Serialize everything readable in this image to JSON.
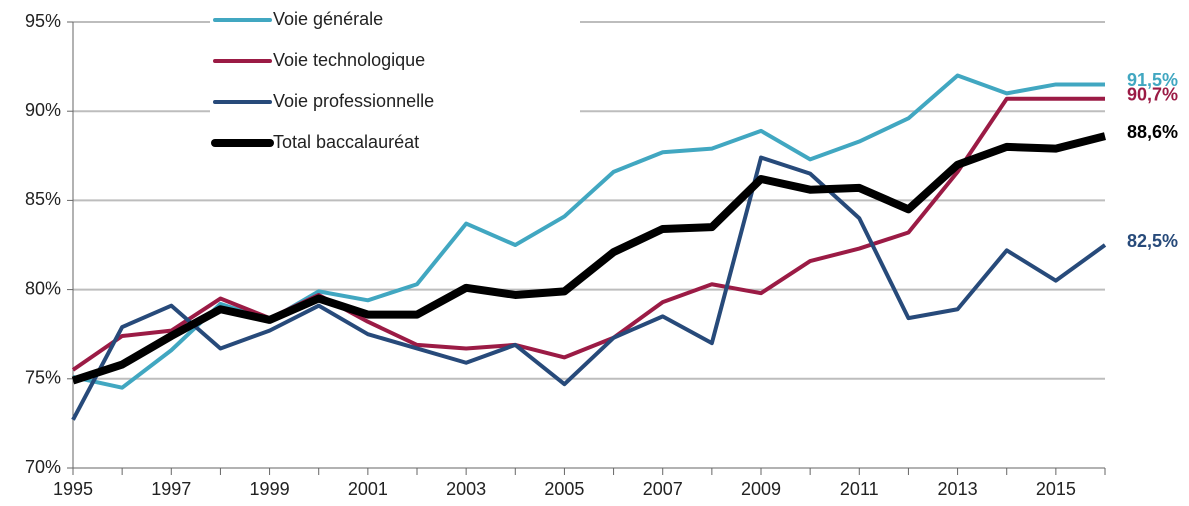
{
  "chart_data": {
    "type": "line",
    "x": [
      1995,
      1996,
      1997,
      1998,
      1999,
      2000,
      2001,
      2002,
      2003,
      2004,
      2005,
      2006,
      2007,
      2008,
      2009,
      2010,
      2011,
      2012,
      2013,
      2014,
      2015,
      2016
    ],
    "xlim": [
      1995,
      2016
    ],
    "xticks": [
      1995,
      1997,
      1999,
      2001,
      2003,
      2005,
      2007,
      2009,
      2011,
      2013,
      2015
    ],
    "ylim": [
      70,
      95
    ],
    "yticks": [
      {
        "value": 70,
        "label": "70%"
      },
      {
        "value": 75,
        "label": "75%"
      },
      {
        "value": 80,
        "label": "80%"
      },
      {
        "value": 85,
        "label": "85%"
      },
      {
        "value": 90,
        "label": "90%"
      },
      {
        "value": 95,
        "label": "95%"
      }
    ],
    "grid": true,
    "legend": "top-left",
    "series": [
      {
        "name": "Voie générale",
        "color": "#41a7c1",
        "width": 4,
        "end_label": "91,5%",
        "values": [
          75.1,
          74.5,
          76.6,
          79.2,
          78.3,
          79.9,
          79.4,
          80.3,
          83.7,
          82.5,
          84.1,
          86.6,
          87.7,
          87.9,
          88.9,
          87.3,
          88.3,
          89.6,
          92.0,
          91.0,
          91.5,
          91.5
        ]
      },
      {
        "name": "Voie technologique",
        "color": "#9b1b45",
        "width": 4,
        "end_label": "90,7%",
        "values": [
          75.5,
          77.4,
          77.7,
          79.5,
          78.4,
          79.7,
          78.2,
          76.9,
          76.7,
          76.9,
          76.2,
          77.3,
          79.3,
          80.3,
          79.8,
          81.6,
          82.3,
          83.2,
          86.6,
          90.7,
          90.7,
          90.7
        ]
      },
      {
        "name": "Voie professionnelle",
        "color": "#274a7a",
        "width": 4,
        "end_label": "82,5%",
        "values": [
          72.7,
          77.9,
          79.1,
          76.7,
          77.7,
          79.1,
          77.5,
          76.7,
          75.9,
          76.9,
          74.7,
          77.3,
          78.5,
          77.0,
          87.4,
          86.5,
          84.0,
          78.4,
          78.9,
          82.2,
          80.5,
          82.5
        ]
      },
      {
        "name": "Total baccalauréat",
        "color": "#000000",
        "width": 8,
        "end_label": "88,6%",
        "values": [
          74.9,
          75.8,
          77.4,
          78.9,
          78.3,
          79.5,
          78.6,
          78.6,
          80.1,
          79.7,
          79.9,
          82.1,
          83.4,
          83.5,
          86.2,
          85.6,
          85.7,
          84.5,
          87.0,
          88.0,
          87.9,
          88.6
        ]
      }
    ]
  }
}
